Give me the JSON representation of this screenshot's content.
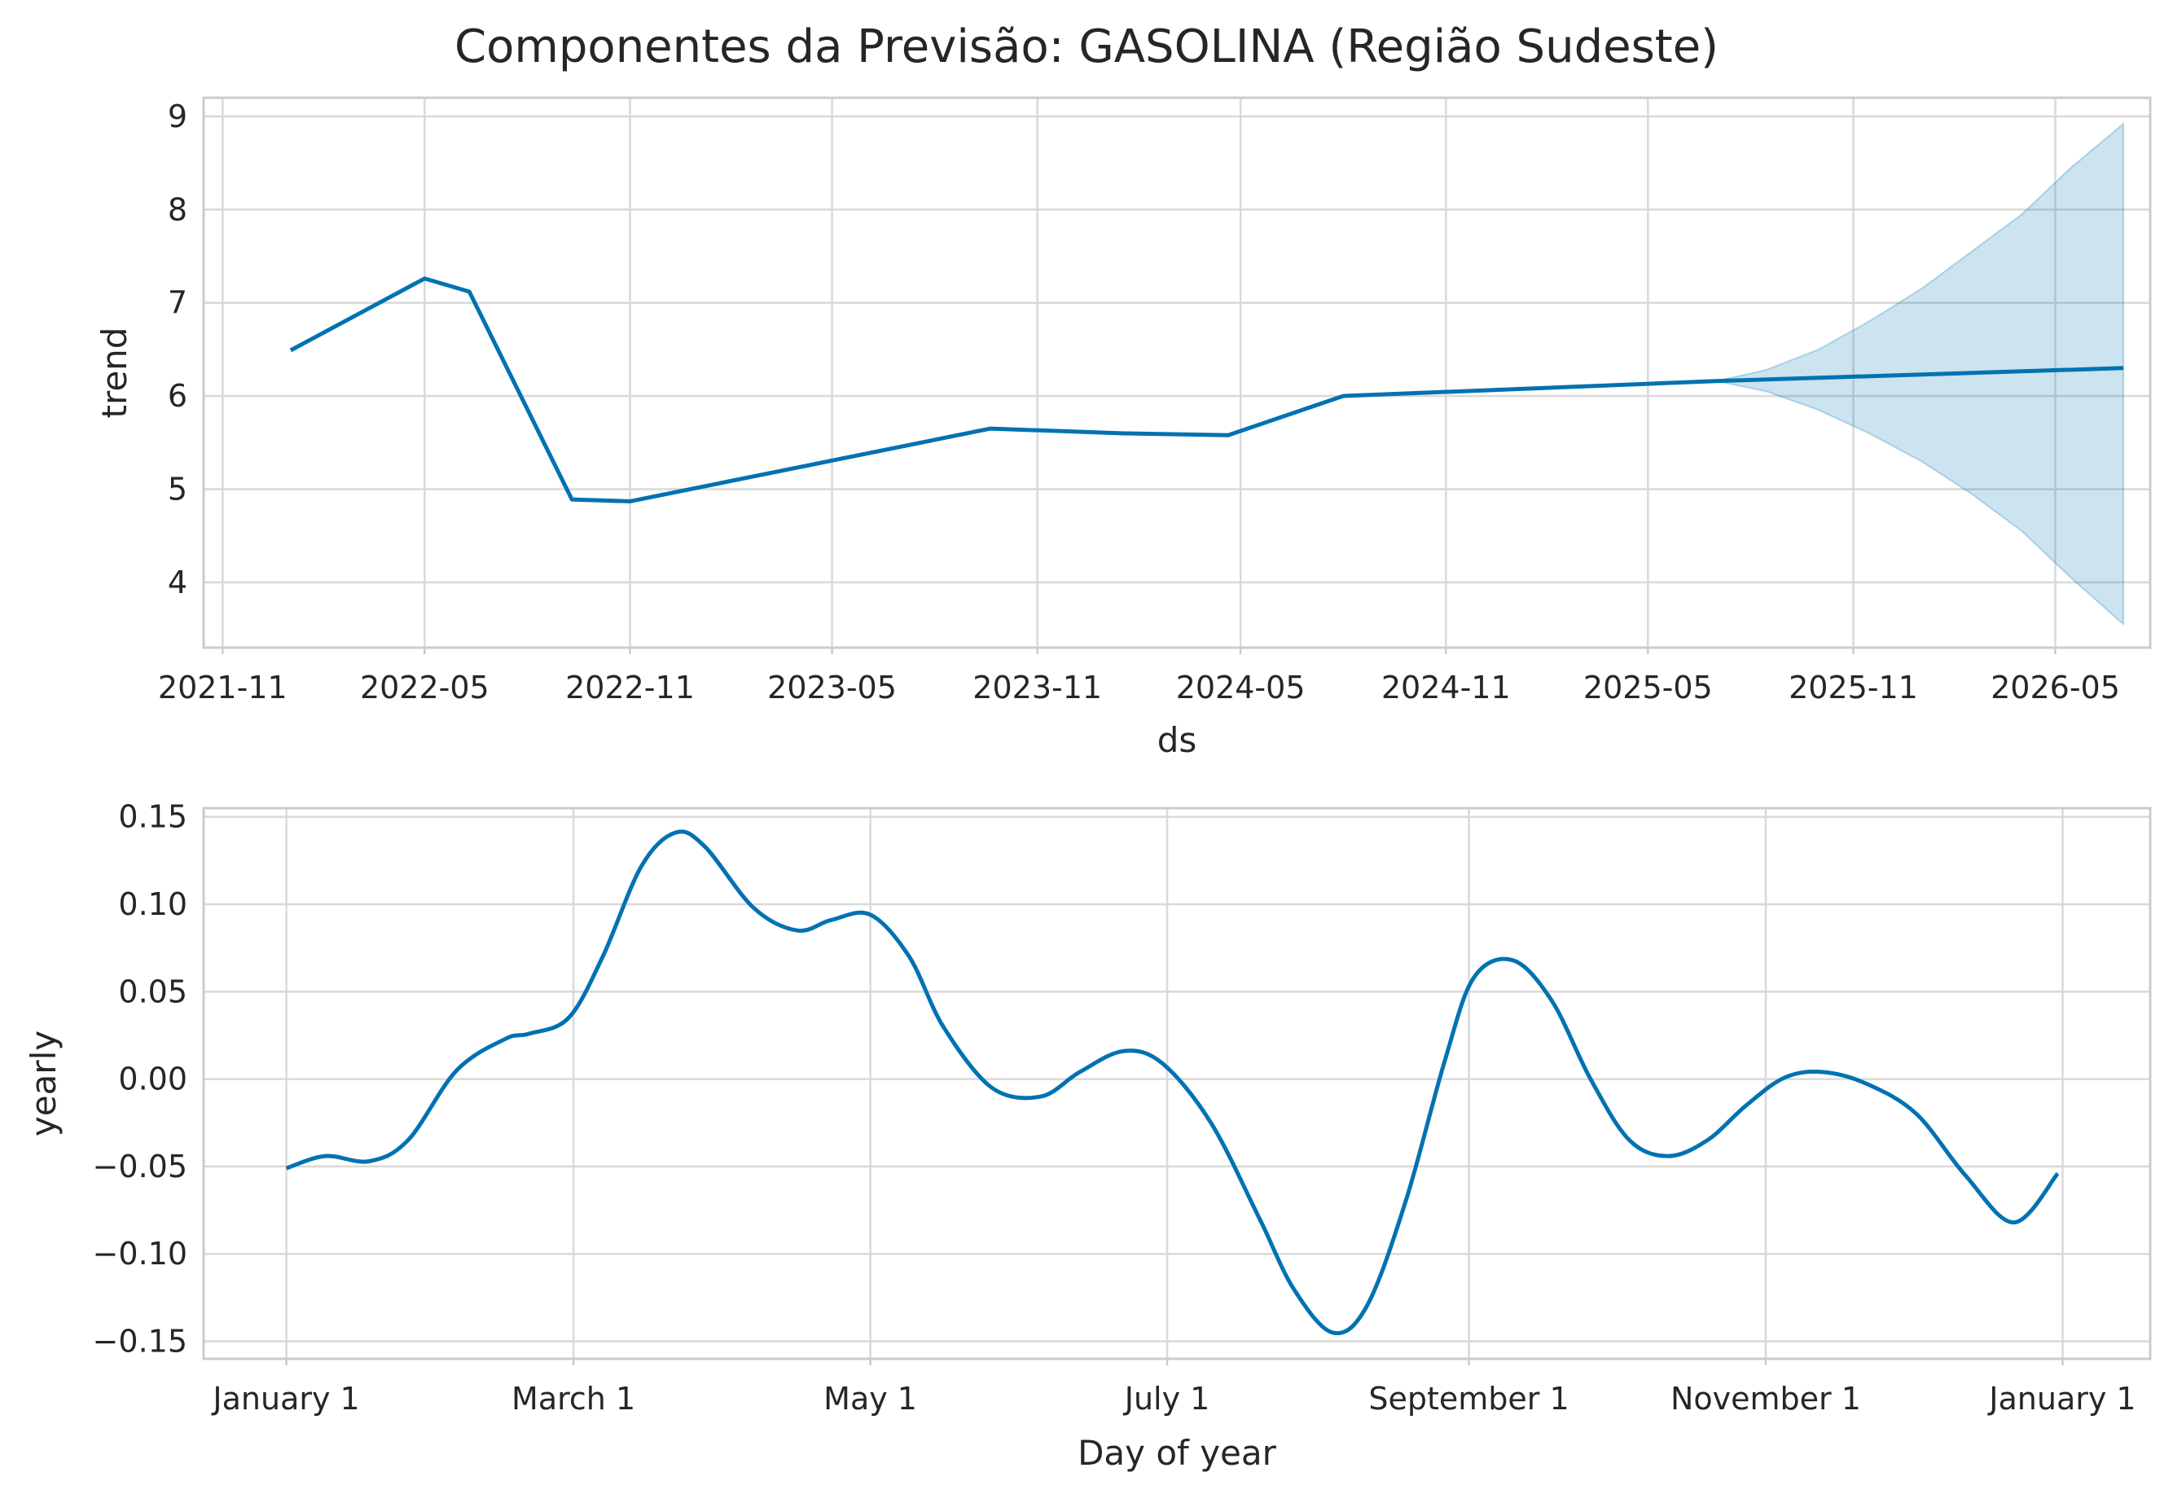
{
  "title": "Componentes da Previsão: GASOLINA (Região Sudeste)",
  "colors": {
    "line": "#0072B2",
    "band": "#0072B2",
    "grid": "#d9d9d9",
    "frame": "#cccccc",
    "text": "#262626"
  },
  "chart_data": [
    {
      "type": "line",
      "xlabel": "ds",
      "ylabel": "trend",
      "x_type": "date",
      "xlim": [
        "2021-10-15",
        "2026-07-25"
      ],
      "ylim": [
        3.3,
        9.2
      ],
      "x_ticks": [
        "2021-11",
        "2022-05",
        "2022-11",
        "2023-05",
        "2023-11",
        "2024-05",
        "2024-11",
        "2025-05",
        "2025-11",
        "2026-05"
      ],
      "y_ticks": [
        4,
        5,
        6,
        7,
        8,
        9
      ],
      "grid": true,
      "series": [
        {
          "x": [
            "2022-01-01",
            "2022-05-01",
            "2022-06-10",
            "2022-09-10",
            "2022-11-01",
            "2023-09-20",
            "2024-01-15",
            "2024-04-20",
            "2024-08-01",
            "2025-07-01",
            "2026-07-01"
          ],
          "y": [
            6.49,
            7.26,
            7.12,
            4.89,
            4.87,
            5.65,
            5.6,
            5.58,
            6.0,
            6.16,
            6.3
          ]
        }
      ],
      "uncertainty_band": {
        "x": [
          "2025-07-01",
          "2025-08-15",
          "2025-10-01",
          "2025-11-15",
          "2026-01-01",
          "2026-02-15",
          "2026-04-01",
          "2026-05-15",
          "2026-07-01"
        ],
        "lower": [
          6.16,
          6.05,
          5.85,
          5.6,
          5.3,
          4.95,
          4.55,
          4.05,
          3.55
        ],
        "upper": [
          6.16,
          6.28,
          6.5,
          6.8,
          7.15,
          7.55,
          7.95,
          8.45,
          8.92
        ]
      }
    },
    {
      "type": "line",
      "xlabel": "Day of year",
      "ylabel": "yearly",
      "xlim": [
        -17,
        383
      ],
      "ylim": [
        -0.16,
        0.155
      ],
      "x_ticks": [
        {
          "label": "January 1",
          "day": 0
        },
        {
          "label": "March 1",
          "day": 59
        },
        {
          "label": "May 1",
          "day": 120
        },
        {
          "label": "July 1",
          "day": 181
        },
        {
          "label": "September 1",
          "day": 243
        },
        {
          "label": "November 1",
          "day": 304
        },
        {
          "label": "January 1",
          "day": 365
        }
      ],
      "y_ticks": [
        -0.15,
        -0.1,
        -0.05,
        0.0,
        0.05,
        0.1,
        0.15
      ],
      "grid": true,
      "series": [
        {
          "x": [
            0,
            8,
            17,
            25,
            35,
            45,
            50,
            58,
            65,
            73,
            80,
            86,
            96,
            105,
            112,
            120,
            128,
            135,
            145,
            155,
            163,
            172,
            180,
            190,
            200,
            207,
            215,
            222,
            230,
            238,
            244,
            252,
            260,
            268,
            276,
            284,
            292,
            300,
            308,
            316,
            325,
            335,
            345,
            355,
            364
          ],
          "y": [
            -0.051,
            -0.044,
            -0.047,
            -0.035,
            0.005,
            0.023,
            0.026,
            0.035,
            0.07,
            0.122,
            0.141,
            0.133,
            0.098,
            0.085,
            0.091,
            0.094,
            0.07,
            0.03,
            -0.005,
            -0.01,
            0.004,
            0.016,
            0.009,
            -0.025,
            -0.08,
            -0.12,
            -0.145,
            -0.13,
            -0.07,
            0.01,
            0.058,
            0.068,
            0.045,
            0.0,
            -0.035,
            -0.044,
            -0.035,
            -0.015,
            0.001,
            0.004,
            -0.003,
            -0.02,
            -0.055,
            -0.082,
            -0.054
          ]
        }
      ]
    }
  ]
}
